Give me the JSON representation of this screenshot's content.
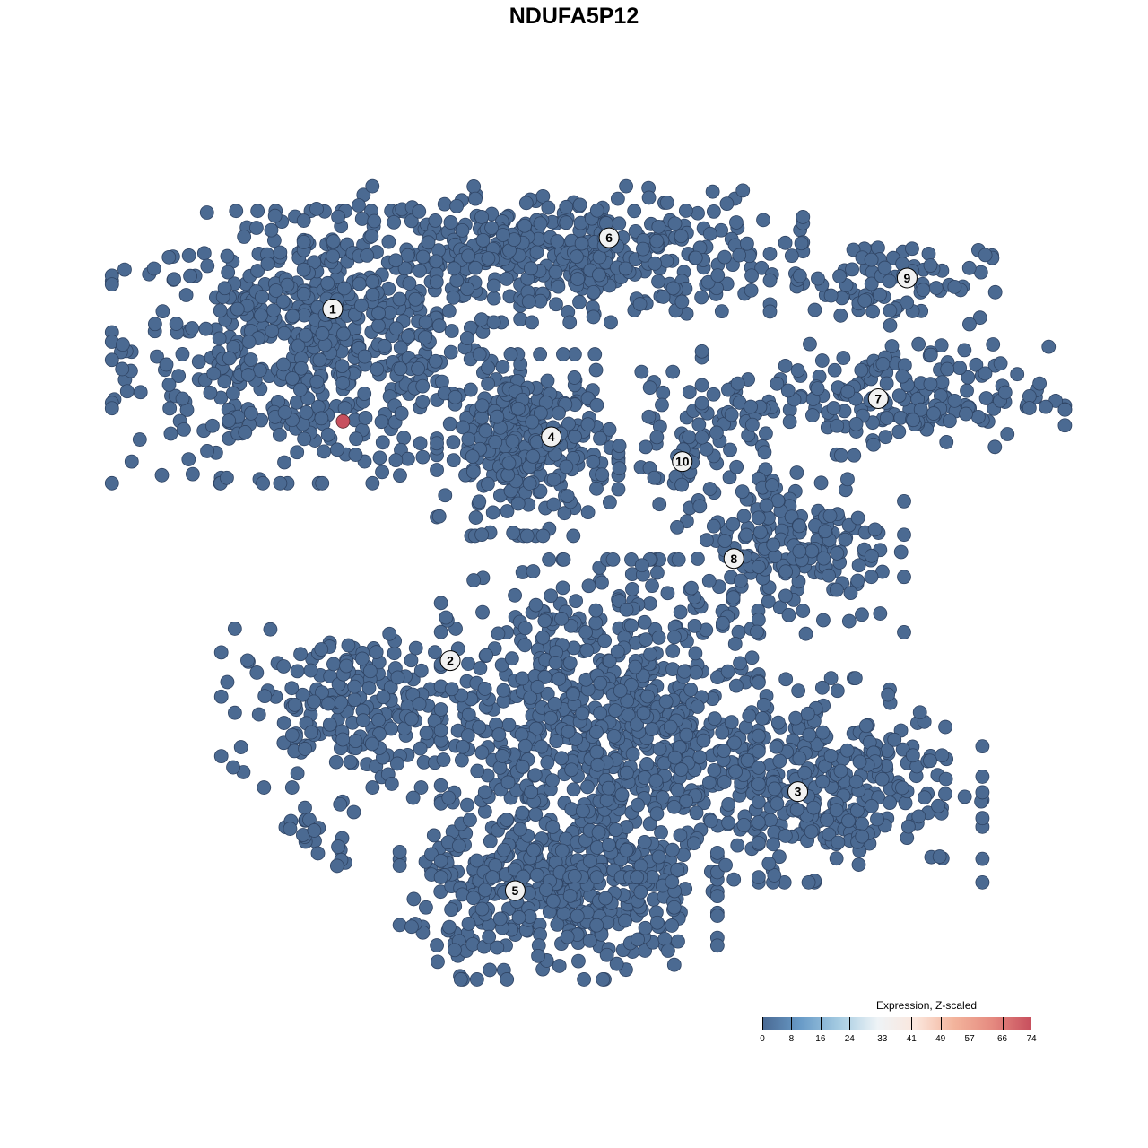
{
  "chart_data": {
    "type": "scatter",
    "title": "NDUFA5P12",
    "xlabel": "",
    "ylabel": "",
    "grid": false,
    "axes_visible": false,
    "point_color_low": "#4b6a92",
    "point_color_high": "#c8505e",
    "clusters": [
      {
        "label": "1",
        "label_pos": [
          -23.4,
          25.7
        ],
        "center": [
          -25,
          22
        ],
        "spread": [
          9,
          6
        ],
        "n": 600
      },
      {
        "label": "6",
        "label_pos": [
          3.4,
          32.6
        ],
        "center": [
          -2,
          31
        ],
        "spread": [
          11,
          3
        ],
        "n": 450
      },
      {
        "label": "4",
        "label_pos": [
          -2.2,
          13.3
        ],
        "center": [
          -4.5,
          12.5
        ],
        "spread": [
          4,
          4
        ],
        "n": 300
      },
      {
        "label": "10",
        "label_pos": [
          10.5,
          10.9
        ],
        "center": [
          11,
          13
        ],
        "spread": [
          3,
          3
        ],
        "n": 60
      },
      {
        "label": "9",
        "label_pos": [
          32.3,
          28.7
        ],
        "center": [
          30,
          28.5
        ],
        "spread": [
          5,
          2
        ],
        "n": 90
      },
      {
        "label": "7",
        "label_pos": [
          29.5,
          17.0
        ],
        "center": [
          30,
          17
        ],
        "spread": [
          8,
          2.5
        ],
        "n": 200
      },
      {
        "label": "8",
        "label_pos": [
          15.5,
          1.5
        ],
        "center": [
          21,
          3
        ],
        "spread": [
          5,
          4
        ],
        "n": 200
      },
      {
        "label": "2",
        "label_pos": [
          -12.0,
          -8.4
        ],
        "center": [
          -21,
          -13
        ],
        "spread": [
          6,
          3.5
        ],
        "n": 220
      },
      {
        "label": "3",
        "label_pos": [
          21.7,
          -21.1
        ],
        "center": [
          22,
          -20
        ],
        "spread": [
          8,
          4.5
        ],
        "n": 400
      },
      {
        "label": "5",
        "label_pos": [
          -5.7,
          -30.7
        ],
        "center": [
          -1.5,
          -30.5
        ],
        "spread": [
          7,
          4
        ],
        "n": 450
      },
      {
        "label": "",
        "label_pos": null,
        "center": [
          2.5,
          -14
        ],
        "spread": [
          7,
          7
        ],
        "n": 650
      },
      {
        "label": "",
        "label_pos": null,
        "center": [
          -25,
          -25
        ],
        "spread": [
          2.5,
          1.5
        ],
        "n": 25
      }
    ],
    "highlight_points": [
      {
        "x": -22.4,
        "y": 14.8,
        "value": 74
      }
    ],
    "default_value": 0,
    "colorbar": {
      "title": "Expression, Z-scaled",
      "ticks": [
        "0",
        "8",
        "16",
        "24",
        "33",
        "41",
        "49",
        "57",
        "66",
        "74"
      ],
      "range": [
        0,
        74
      ],
      "colors": [
        "#4a6a94",
        "#6a9cc8",
        "#a6cce2",
        "#eef3f6",
        "#fbe6dc",
        "#f3b49c",
        "#e58a80",
        "#c8505e"
      ],
      "placement": "bottom-right"
    }
  }
}
